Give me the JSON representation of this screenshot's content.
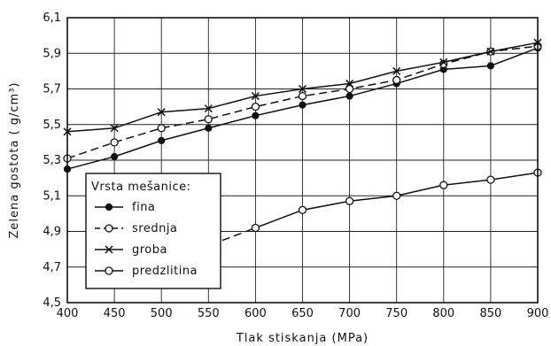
{
  "chart_data": {
    "type": "line",
    "xlabel": "Tlak stiskanja (MPa)",
    "ylabel": "Zelena gostota ( g/cm³)",
    "xlim": [
      400,
      900
    ],
    "ylim": [
      4.5,
      6.1
    ],
    "x_ticks": [
      400,
      450,
      500,
      550,
      600,
      650,
      700,
      750,
      800,
      850,
      900
    ],
    "y_ticks": [
      4.5,
      4.7,
      4.9,
      5.1,
      5.3,
      5.5,
      5.7,
      5.9,
      6.1
    ],
    "x_tick_labels": [
      "400",
      "450",
      "500",
      "550",
      "600",
      "650",
      "700",
      "750",
      "800",
      "850",
      "900"
    ],
    "y_tick_labels": [
      "4,5",
      "4,7",
      "4,9",
      "5,1",
      "5,3",
      "5,5",
      "5,7",
      "5,9",
      "6,1"
    ],
    "grid": true,
    "legend": {
      "title": "Vrsta mešanice:",
      "placement": "lower-left",
      "entries": [
        "fina",
        "srednja",
        "groba",
        "predzlitina"
      ]
    },
    "series": [
      {
        "name": "fina",
        "marker": "filled-circle",
        "line": "solid",
        "x": [
          400,
          450,
          500,
          550,
          600,
          650,
          700,
          750,
          800,
          850,
          900
        ],
        "y": [
          5.25,
          5.32,
          5.41,
          5.48,
          5.55,
          5.61,
          5.66,
          5.73,
          5.81,
          5.83,
          5.93
        ]
      },
      {
        "name": "srednja",
        "marker": "open-circle",
        "line": "dashed",
        "x": [
          400,
          450,
          500,
          550,
          600,
          650,
          700,
          750,
          800,
          850,
          900
        ],
        "y": [
          5.31,
          5.4,
          5.48,
          5.53,
          5.6,
          5.66,
          5.7,
          5.75,
          5.84,
          5.91,
          5.94
        ]
      },
      {
        "name": "groba",
        "marker": "cross",
        "line": "solid",
        "x": [
          400,
          450,
          500,
          550,
          600,
          650,
          700,
          750,
          800,
          850,
          900
        ],
        "y": [
          5.46,
          5.48,
          5.57,
          5.59,
          5.66,
          5.7,
          5.73,
          5.8,
          5.85,
          5.91,
          5.96
        ]
      },
      {
        "name": "predzlitina",
        "marker": "open-circle",
        "line": "solid",
        "x": [
          600,
          650,
          700,
          750,
          800,
          850,
          900
        ],
        "y": [
          4.92,
          5.02,
          5.07,
          5.1,
          5.16,
          5.19,
          5.23
        ],
        "extrapolation": {
          "line": "dashed",
          "x": [
            540,
            600
          ],
          "y": [
            4.8,
            4.92
          ]
        }
      }
    ]
  }
}
